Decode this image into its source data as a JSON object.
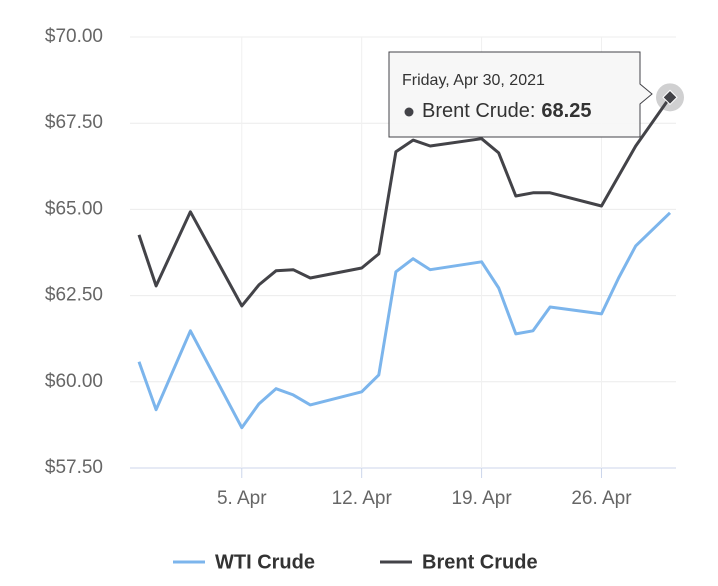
{
  "chart_data": {
    "type": "line",
    "x": [
      "2021-03-30",
      "2021-03-31",
      "2021-04-02",
      "2021-04-05",
      "2021-04-06",
      "2021-04-07",
      "2021-04-08",
      "2021-04-09",
      "2021-04-12",
      "2021-04-13",
      "2021-04-14",
      "2021-04-15",
      "2021-04-16",
      "2021-04-19",
      "2021-04-20",
      "2021-04-21",
      "2021-04-22",
      "2021-04-23",
      "2021-04-26",
      "2021-04-27",
      "2021-04-28",
      "2021-04-30"
    ],
    "series": [
      {
        "name": "WTI Crude",
        "color": "#7cb5ec",
        "values": [
          60.58,
          59.19,
          61.48,
          58.67,
          59.36,
          59.8,
          59.62,
          59.33,
          59.71,
          60.2,
          63.19,
          63.57,
          63.25,
          63.48,
          62.72,
          61.39,
          61.48,
          62.17,
          61.97,
          63.01,
          63.94,
          64.9
        ]
      },
      {
        "name": "Brent Crude",
        "color": "#434348",
        "values": [
          64.26,
          62.78,
          64.93,
          62.2,
          62.81,
          63.22,
          63.25,
          63.01,
          63.3,
          63.71,
          66.67,
          67.01,
          66.84,
          67.05,
          66.64,
          65.39,
          65.48,
          65.48,
          65.1,
          65.97,
          66.84,
          68.25
        ]
      }
    ],
    "xlim": [
      "2021-03-30",
      "2021-04-30"
    ],
    "xticks": [
      {
        "value": "2021-04-05",
        "label": "5. Apr"
      },
      {
        "value": "2021-04-12",
        "label": "12. Apr"
      },
      {
        "value": "2021-04-19",
        "label": "19. Apr"
      },
      {
        "value": "2021-04-26",
        "label": "26. Apr"
      }
    ],
    "ylim": [
      57.5,
      70
    ],
    "yticks": [
      {
        "value": 57.5,
        "label": "$57.50"
      },
      {
        "value": 60,
        "label": "$60.00"
      },
      {
        "value": 62.5,
        "label": "$62.50"
      },
      {
        "value": 65,
        "label": "$65.00"
      },
      {
        "value": 67.5,
        "label": "$67.50"
      },
      {
        "value": 70,
        "label": "$70.00"
      }
    ],
    "grid": true,
    "legend": "bottom",
    "tooltip": {
      "date": "Friday, Apr 30, 2021",
      "series": 1,
      "point": 21
    }
  }
}
